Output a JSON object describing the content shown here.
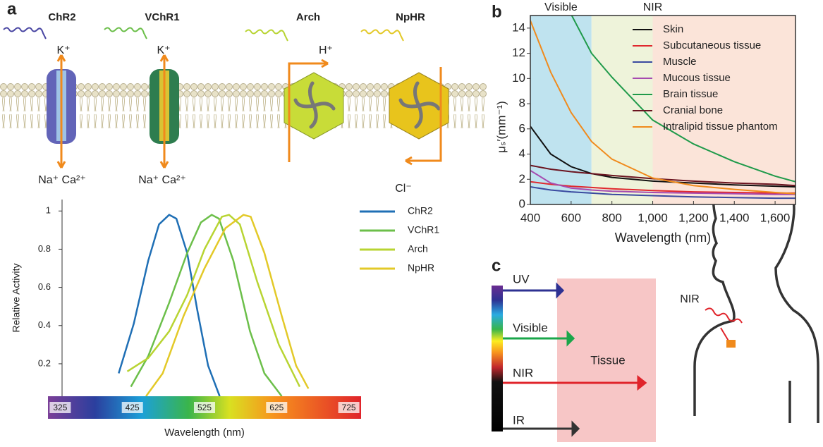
{
  "panels": [
    "a",
    "b",
    "c"
  ],
  "diagram": {
    "opsins": [
      "ChR2",
      "VChR1",
      "Arch",
      "NpHR"
    ],
    "ions": {
      "chr2_top": "K⁺",
      "vchr1_top": "K⁺",
      "arch_top": "H⁺",
      "chr2_bottom": "Na⁺ Ca²⁺",
      "vchr1_bottom": "Na⁺ Ca²⁺",
      "nphr_bottom": "Cl⁻"
    }
  },
  "panel_c": {
    "spectrum": [
      "UV",
      "Visible",
      "NIR",
      "IR"
    ],
    "tissue": "Tissue",
    "body_label": "NIR"
  },
  "chart_data": [
    {
      "type": "line",
      "x_label": "Wavelength (nm)",
      "y_label": "Relative Activity",
      "xlim": [
        308,
        742
      ],
      "xticks": [
        325,
        425,
        525,
        625,
        725
      ],
      "ylim": [
        0.03,
        1.06
      ],
      "yticks": [
        0.2,
        0.4,
        0.6,
        0.8,
        1
      ],
      "legend": "right",
      "colorbar": true,
      "series": [
        {
          "name": "ChR2",
          "color": "#1f6fb5",
          "x": [
            406,
            427,
            447,
            462,
            476,
            486,
            501,
            515,
            530,
            546
          ],
          "values": [
            0.15,
            0.41,
            0.74,
            0.93,
            0.98,
            0.96,
            0.78,
            0.48,
            0.19,
            0.03
          ]
        },
        {
          "name": "VChR1",
          "color": "#6cbf4a",
          "x": [
            423,
            447,
            476,
            501,
            520,
            535,
            545,
            565,
            588,
            608,
            632
          ],
          "values": [
            0.08,
            0.24,
            0.52,
            0.78,
            0.94,
            0.98,
            0.96,
            0.74,
            0.37,
            0.15,
            0.03
          ]
        },
        {
          "name": "Arch",
          "color": "#b8d432",
          "x": [
            418,
            447,
            476,
            501,
            525,
            549,
            559,
            574,
            598,
            628,
            657
          ],
          "values": [
            0.16,
            0.23,
            0.37,
            0.56,
            0.8,
            0.97,
            0.98,
            0.93,
            0.63,
            0.3,
            0.08
          ]
        },
        {
          "name": "NpHR",
          "color": "#e3c928",
          "x": [
            444,
            467,
            496,
            525,
            554,
            579,
            589,
            608,
            632,
            652,
            669
          ],
          "values": [
            0.03,
            0.15,
            0.45,
            0.7,
            0.91,
            0.98,
            0.97,
            0.78,
            0.45,
            0.19,
            0.07
          ]
        }
      ]
    },
    {
      "type": "line",
      "x_label": "Wavelength (nm)",
      "y_label": "μₛ′(mm⁻¹)",
      "xlim": [
        400,
        1700
      ],
      "xticks": [
        400,
        600,
        800,
        {
          "value": 1000,
          "label": "1,000"
        },
        {
          "value": 1200,
          "label": "1,200"
        },
        {
          "value": 1400,
          "label": "1,400"
        },
        {
          "value": 1600,
          "label": "1,600"
        }
      ],
      "ylim": [
        0,
        15
      ],
      "yticks": [
        0,
        2,
        4,
        6,
        8,
        10,
        12,
        14
      ],
      "legend": "upper right",
      "bands": [
        {
          "xlim": [
            400,
            700
          ],
          "color": "#bfe3ef"
        },
        {
          "xlim": [
            700,
            1000
          ],
          "color": "#eef3da"
        },
        {
          "xlim": [
            1000,
            1700
          ],
          "color": "#fbe4d9"
        }
      ],
      "region_labels": [
        {
          "text": "Visible",
          "x": 550
        },
        {
          "text": "NIR",
          "x": 1000
        }
      ],
      "series": [
        {
          "name": "Skin",
          "color": "#111111",
          "x": [
            400,
            500,
            600,
            700,
            800,
            1000,
            1200,
            1400,
            1600,
            1700
          ],
          "values": [
            6.2,
            4.0,
            3.0,
            2.45,
            2.15,
            1.85,
            1.7,
            1.55,
            1.45,
            1.4
          ]
        },
        {
          "name": "Subcutaneous tissue",
          "color": "#e0282e",
          "x": [
            400,
            500,
            600,
            700,
            800,
            1000,
            1200,
            1400,
            1600,
            1700
          ],
          "values": [
            1.8,
            1.6,
            1.45,
            1.35,
            1.25,
            1.1,
            1.0,
            0.95,
            0.9,
            0.9
          ]
        },
        {
          "name": "Muscle",
          "color": "#3a4aa0",
          "x": [
            400,
            500,
            600,
            700,
            800,
            1000,
            1200,
            1400,
            1600,
            1700
          ],
          "values": [
            1.4,
            1.15,
            1.0,
            0.9,
            0.8,
            0.7,
            0.6,
            0.55,
            0.5,
            0.5
          ]
        },
        {
          "name": "Mucous tissue",
          "color": "#a64bb0",
          "x": [
            400,
            500,
            600,
            700,
            800,
            1000,
            1200,
            1400,
            1600,
            1700
          ],
          "values": [
            2.7,
            1.7,
            1.3,
            1.15,
            1.05,
            0.95,
            0.9,
            0.85,
            0.8,
            0.8
          ]
        },
        {
          "name": "Brain tissue",
          "color": "#1f9a4a",
          "x": [
            400,
            500,
            600,
            700,
            800,
            1000,
            1200,
            1400,
            1600,
            1700
          ],
          "values": [
            null,
            null,
            15.1,
            12,
            10.1,
            6.7,
            4.8,
            3.4,
            2.25,
            1.8
          ]
        },
        {
          "name": "Cranial bone",
          "color": "#6b1420",
          "x": [
            400,
            500,
            600,
            700,
            800,
            1000,
            1200,
            1400,
            1600,
            1700
          ],
          "values": [
            3.1,
            2.8,
            2.6,
            2.45,
            2.3,
            2.05,
            1.85,
            1.7,
            1.6,
            1.5
          ]
        },
        {
          "name": "Intralipid tissue phantom",
          "color": "#f08a1c",
          "x": [
            400,
            500,
            600,
            700,
            800,
            1000,
            1200,
            1400,
            1600,
            1700
          ],
          "values": [
            14.6,
            10.5,
            7.3,
            5.0,
            3.6,
            2.1,
            1.5,
            1.2,
            0.95,
            0.85
          ]
        }
      ]
    }
  ]
}
